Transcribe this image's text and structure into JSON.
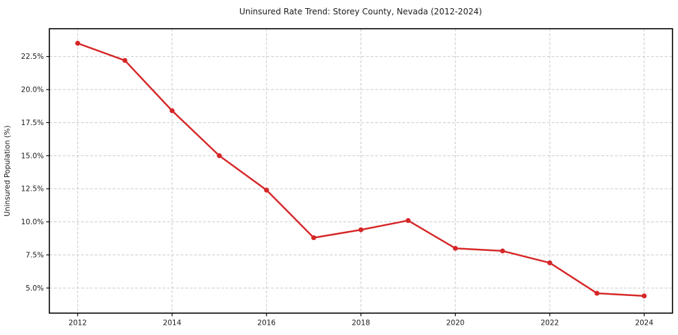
{
  "chart_data": {
    "type": "line",
    "title": "Uninsured Rate Trend: Storey County, Nevada (2012-2024)",
    "xlabel": "",
    "ylabel": "Uninsured Population (%)",
    "x": [
      2012,
      2013,
      2014,
      2015,
      2016,
      2017,
      2018,
      2019,
      2020,
      2021,
      2022,
      2023,
      2024
    ],
    "values": [
      23.5,
      22.2,
      18.4,
      15.0,
      12.4,
      8.8,
      9.4,
      10.1,
      8.0,
      7.8,
      6.9,
      4.6,
      4.4
    ],
    "x_ticks": [
      2012,
      2014,
      2016,
      2018,
      2020,
      2022,
      2024
    ],
    "x_tick_labels": [
      "2012",
      "2014",
      "2016",
      "2018",
      "2020",
      "2022",
      "2024"
    ],
    "y_ticks": [
      5.0,
      7.5,
      10.0,
      12.5,
      15.0,
      17.5,
      20.0,
      22.5
    ],
    "y_tick_labels": [
      "5.0%",
      "7.5%",
      "10.0%",
      "12.5%",
      "15.0%",
      "17.5%",
      "20.0%",
      "22.5%"
    ],
    "xlim": [
      2011.4,
      2024.6
    ],
    "ylim": [
      3.1,
      24.6
    ],
    "grid": true,
    "grid_style": "dashed",
    "legend": false,
    "colors": {
      "line": "#d62728",
      "marker": "#d62728",
      "grid": "#c9c9c9",
      "spine": "#000000",
      "text": "#1a1a1a",
      "background": "#ffffff"
    }
  }
}
